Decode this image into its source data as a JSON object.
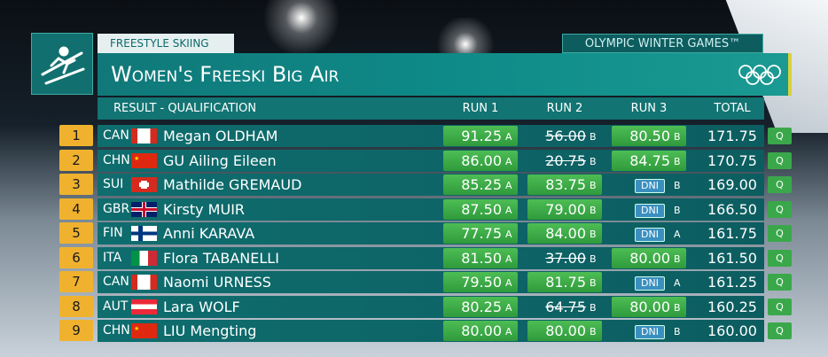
{
  "header": {
    "category": "FREESTYLE SKIING",
    "event": "OLYMPIC WINTER GAMES™",
    "title": "Women's Freeski Big Air",
    "subtitle": "RESULT - QUALIFICATION",
    "columns": [
      "RUN 1",
      "RUN 2",
      "RUN 3",
      "TOTAL"
    ]
  },
  "table": {
    "rows": [
      {
        "rank": "1",
        "noc": "CAN",
        "name": "Megan OLDHAM",
        "runs": [
          {
            "score": "91.25",
            "jump": "A",
            "status": "best"
          },
          {
            "score": "56.00",
            "jump": "B",
            "status": "dropped"
          },
          {
            "score": "80.50",
            "jump": "B",
            "status": "best"
          }
        ],
        "total": "171.75",
        "qualified": "Q"
      },
      {
        "rank": "2",
        "noc": "CHN",
        "name": "GU Ailing Eileen",
        "runs": [
          {
            "score": "86.00",
            "jump": "A",
            "status": "best"
          },
          {
            "score": "20.75",
            "jump": "B",
            "status": "dropped"
          },
          {
            "score": "84.75",
            "jump": "B",
            "status": "best"
          }
        ],
        "total": "170.75",
        "qualified": "Q"
      },
      {
        "rank": "3",
        "noc": "SUI",
        "name": "Mathilde GREMAUD",
        "runs": [
          {
            "score": "85.25",
            "jump": "A",
            "status": "best"
          },
          {
            "score": "83.75",
            "jump": "B",
            "status": "best"
          },
          {
            "score": "DNI",
            "jump": "B",
            "status": "dni"
          }
        ],
        "total": "169.00",
        "qualified": "Q"
      },
      {
        "rank": "4",
        "noc": "GBR",
        "name": "Kirsty MUIR",
        "runs": [
          {
            "score": "87.50",
            "jump": "A",
            "status": "best"
          },
          {
            "score": "79.00",
            "jump": "B",
            "status": "best"
          },
          {
            "score": "DNI",
            "jump": "B",
            "status": "dni"
          }
        ],
        "total": "166.50",
        "qualified": "Q"
      },
      {
        "rank": "5",
        "noc": "FIN",
        "name": "Anni KARAVA",
        "runs": [
          {
            "score": "77.75",
            "jump": "A",
            "status": "best"
          },
          {
            "score": "84.00",
            "jump": "B",
            "status": "best"
          },
          {
            "score": "DNI",
            "jump": "A",
            "status": "dni"
          }
        ],
        "total": "161.75",
        "qualified": "Q"
      },
      {
        "rank": "6",
        "noc": "ITA",
        "name": "Flora TABANELLI",
        "runs": [
          {
            "score": "81.50",
            "jump": "A",
            "status": "best"
          },
          {
            "score": "37.00",
            "jump": "B",
            "status": "dropped"
          },
          {
            "score": "80.00",
            "jump": "B",
            "status": "best"
          }
        ],
        "total": "161.50",
        "qualified": "Q"
      },
      {
        "rank": "7",
        "noc": "CAN",
        "name": "Naomi URNESS",
        "runs": [
          {
            "score": "79.50",
            "jump": "A",
            "status": "best"
          },
          {
            "score": "81.75",
            "jump": "B",
            "status": "best"
          },
          {
            "score": "DNI",
            "jump": "A",
            "status": "dni"
          }
        ],
        "total": "161.25",
        "qualified": "Q"
      },
      {
        "rank": "8",
        "noc": "AUT",
        "name": "Lara WOLF",
        "runs": [
          {
            "score": "80.25",
            "jump": "A",
            "status": "best"
          },
          {
            "score": "64.75",
            "jump": "B",
            "status": "dropped"
          },
          {
            "score": "80.00",
            "jump": "B",
            "status": "best"
          }
        ],
        "total": "160.25",
        "qualified": "Q"
      },
      {
        "rank": "9",
        "noc": "CHN",
        "name": "LIU Mengting",
        "runs": [
          {
            "score": "80.00",
            "jump": "A",
            "status": "best"
          },
          {
            "score": "80.00",
            "jump": "B",
            "status": "best"
          },
          {
            "score": "DNI",
            "jump": "B",
            "status": "dni"
          }
        ],
        "total": "160.00",
        "qualified": "Q"
      }
    ]
  }
}
